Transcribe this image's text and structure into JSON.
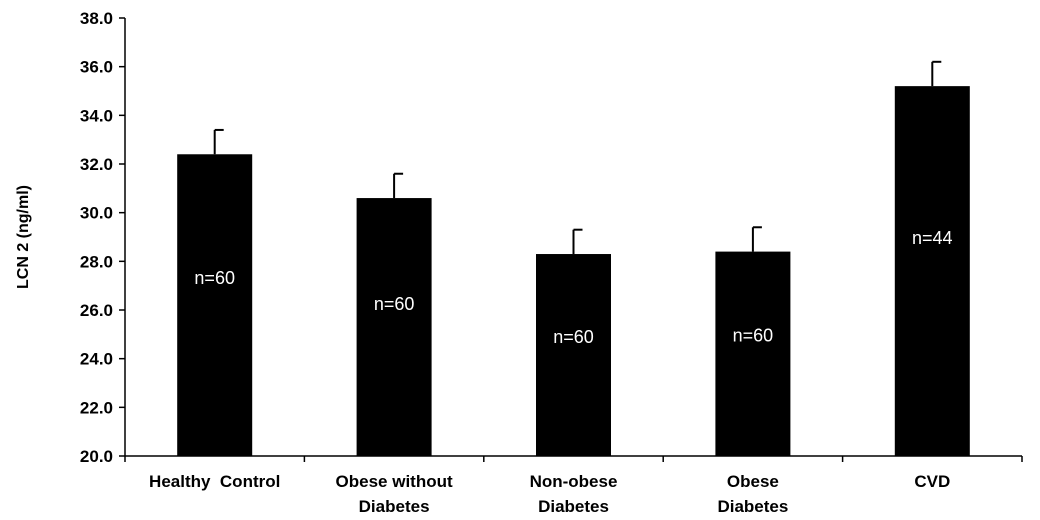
{
  "chart_data": {
    "type": "bar",
    "categories": [
      [
        "Healthy  Control"
      ],
      [
        "Obese without",
        "Diabetes"
      ],
      [
        "Non-obese",
        "Diabetes"
      ],
      [
        "Obese",
        "Diabetes"
      ],
      [
        "CVD"
      ]
    ],
    "values": [
      32.4,
      30.6,
      28.3,
      28.4,
      35.2
    ],
    "errors": [
      1.0,
      1.0,
      1.0,
      1.0,
      1.0
    ],
    "bar_labels": [
      "n=60",
      "n=60",
      "n=60",
      "n=60",
      "n=44"
    ],
    "title": "",
    "xlabel": "",
    "ylabel": "LCN 2 (ng/ml)",
    "ylim": [
      20.0,
      38.0
    ],
    "yticks": [
      "20.0",
      "22.0",
      "24.0",
      "26.0",
      "28.0",
      "30.0",
      "32.0",
      "34.0",
      "36.0",
      "38.0"
    ],
    "bar_color": "#000000",
    "grid": false,
    "legend": "none"
  }
}
